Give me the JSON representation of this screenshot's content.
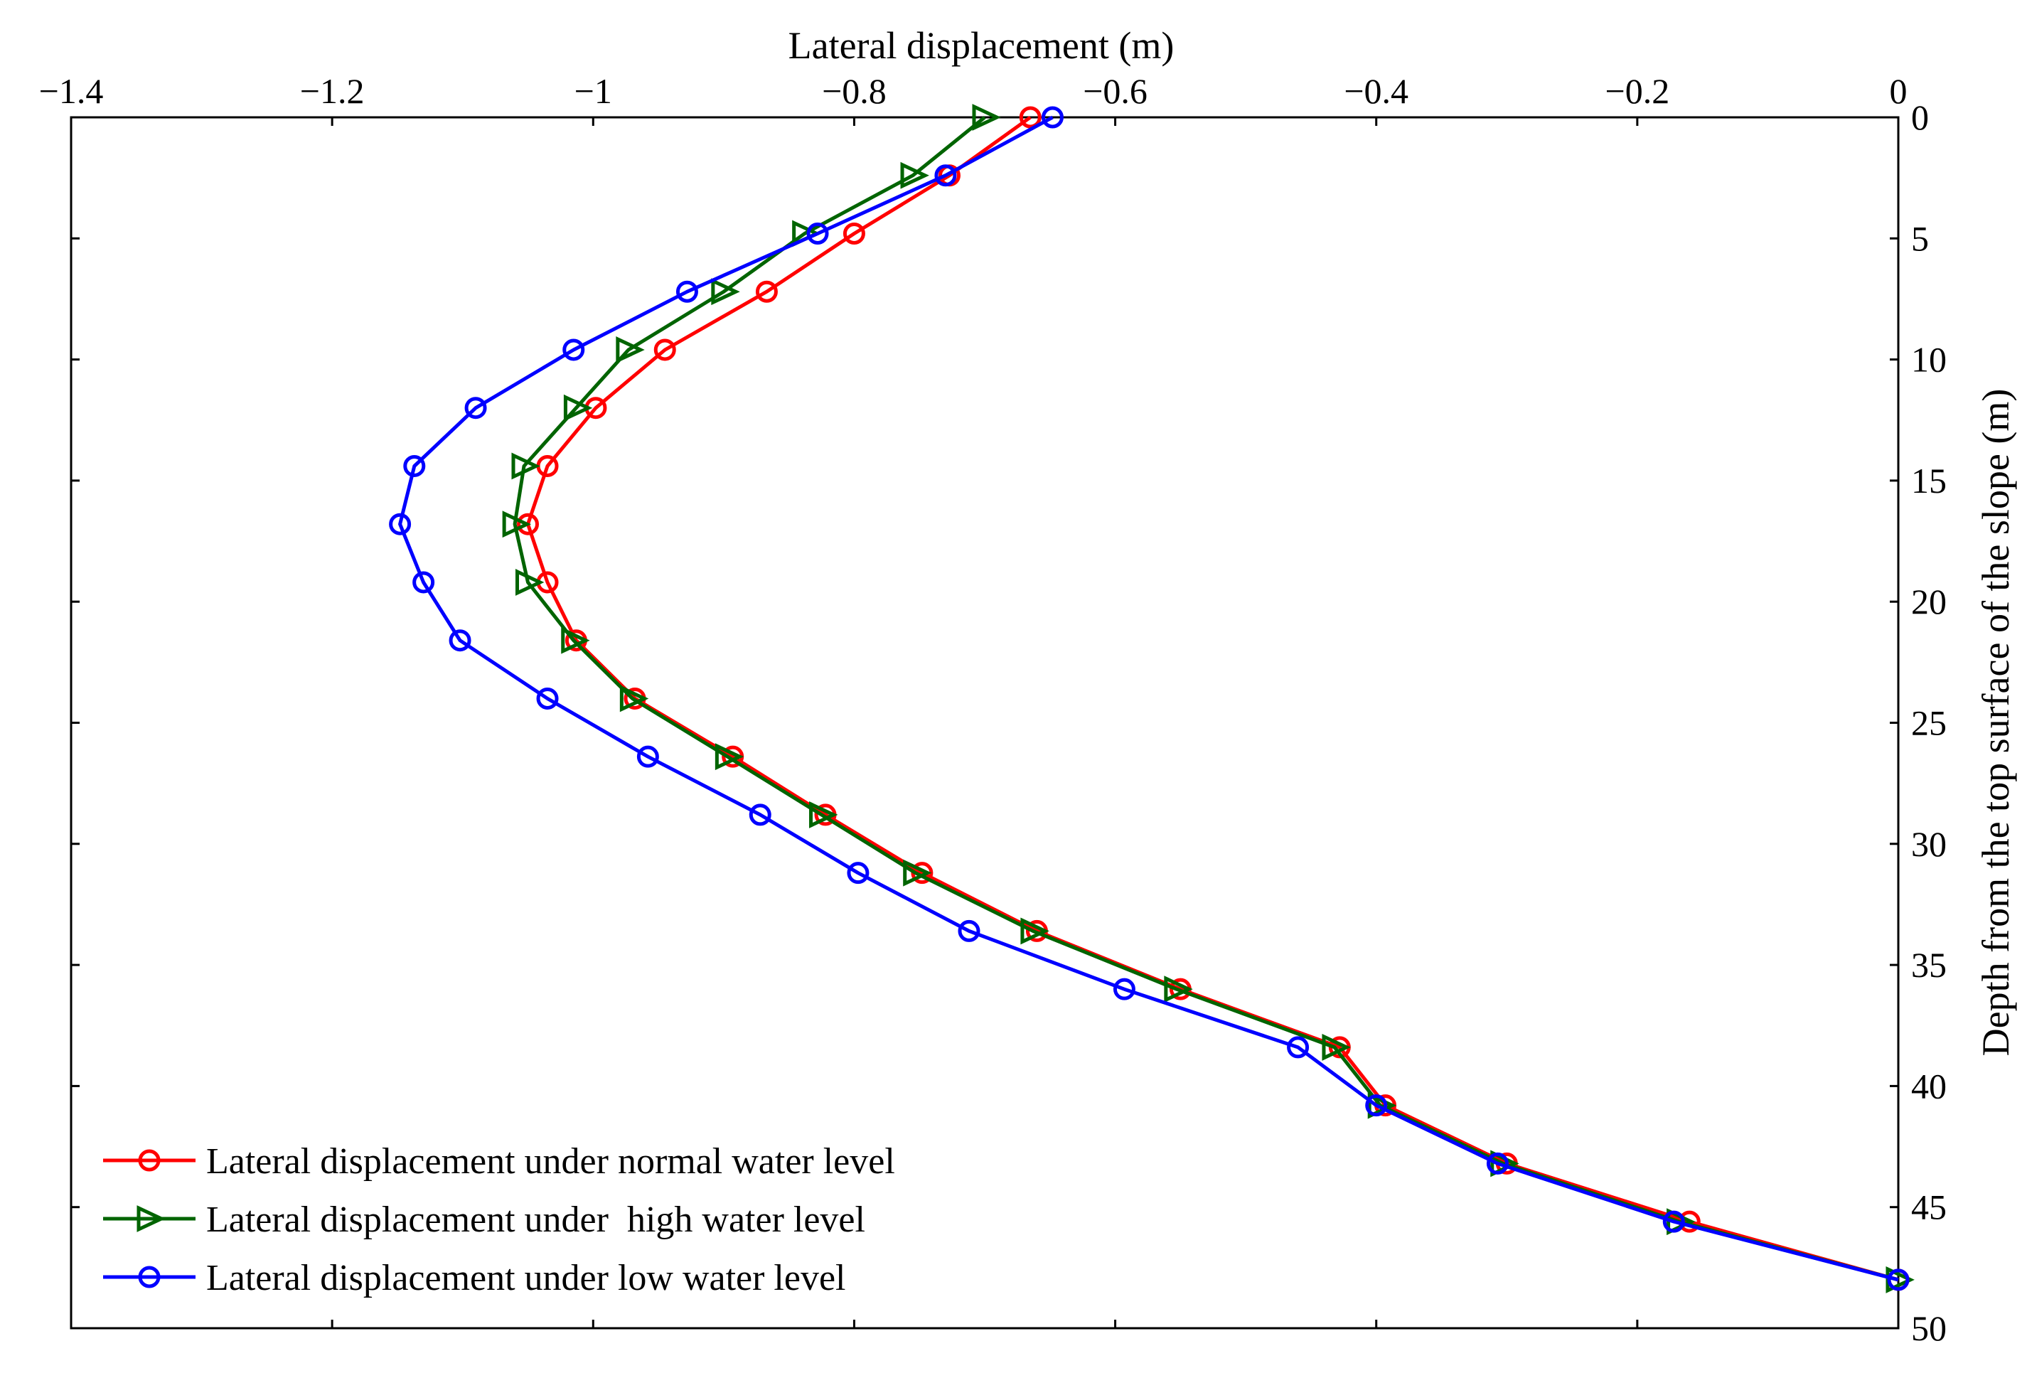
{
  "chart_data": {
    "type": "line",
    "title": "",
    "xlabel": "Lateral displacement (m)",
    "ylabel": "Depth from the top surface of the slope (m)",
    "xlim": [
      -1.4,
      0
    ],
    "ylim": [
      0,
      50
    ],
    "y_inverted": true,
    "x_axis_position": "top",
    "y_axis_position": "right",
    "xticks": [
      -1.4,
      -1.2,
      -1,
      -0.8,
      -0.6,
      -0.4,
      -0.2,
      0
    ],
    "xtick_labels": [
      "−1.4",
      "−1.2",
      "−1",
      "−0.8",
      "−0.6",
      "−0.4",
      "−0.2",
      "0"
    ],
    "yticks": [
      0,
      5,
      10,
      15,
      20,
      25,
      30,
      35,
      40,
      45,
      50
    ],
    "ytick_labels": [
      "0",
      "5",
      "10",
      "15",
      "20",
      "25",
      "30",
      "35",
      "40",
      "45",
      "50"
    ],
    "grid": false,
    "legend_position": "bottom-left",
    "series": [
      {
        "name": "Lateral displacement under normal water level",
        "color": "#ff0000",
        "marker": "circle",
        "x": [
          -0.665,
          -0.727,
          -0.8,
          -0.867,
          -0.945,
          -0.998,
          -1.035,
          -1.05,
          -1.035,
          -1.013,
          -0.968,
          -0.893,
          -0.822,
          -0.748,
          -0.66,
          -0.55,
          -0.428,
          -0.393,
          -0.3,
          -0.16,
          0
        ],
        "y": [
          0,
          2.4,
          4.8,
          7.2,
          9.6,
          12.0,
          14.4,
          16.8,
          19.2,
          21.6,
          24.0,
          26.4,
          28.8,
          31.2,
          33.6,
          36.0,
          38.4,
          40.8,
          43.2,
          45.6,
          48.0
        ]
      },
      {
        "name": "Lateral displacement under  high water level",
        "color": "#006400",
        "marker": "triangle-right",
        "x": [
          -0.7,
          -0.755,
          -0.838,
          -0.9,
          -0.973,
          -1.013,
          -1.053,
          -1.06,
          -1.05,
          -1.015,
          -0.97,
          -0.897,
          -0.825,
          -0.753,
          -0.663,
          -0.553,
          -0.432,
          -0.397,
          -0.303,
          -0.168,
          0
        ],
        "y": [
          0,
          2.4,
          4.8,
          7.2,
          9.6,
          12.0,
          14.4,
          16.8,
          19.2,
          21.6,
          24.0,
          26.4,
          28.8,
          31.2,
          33.6,
          36.0,
          38.4,
          40.8,
          43.2,
          45.6,
          48.0
        ]
      },
      {
        "name": "Lateral displacement under low water level",
        "color": "#0000ff",
        "marker": "circle",
        "x": [
          -0.648,
          -0.73,
          -0.828,
          -0.928,
          -1.015,
          -1.09,
          -1.137,
          -1.148,
          -1.13,
          -1.102,
          -1.035,
          -0.958,
          -0.872,
          -0.797,
          -0.712,
          -0.593,
          -0.46,
          -0.4,
          -0.307,
          -0.172,
          0
        ],
        "y": [
          0,
          2.4,
          4.8,
          7.2,
          9.6,
          12.0,
          14.4,
          16.8,
          19.2,
          21.6,
          24.0,
          26.4,
          28.8,
          31.2,
          33.6,
          36.0,
          38.4,
          40.8,
          43.2,
          45.6,
          48.0
        ]
      }
    ]
  }
}
